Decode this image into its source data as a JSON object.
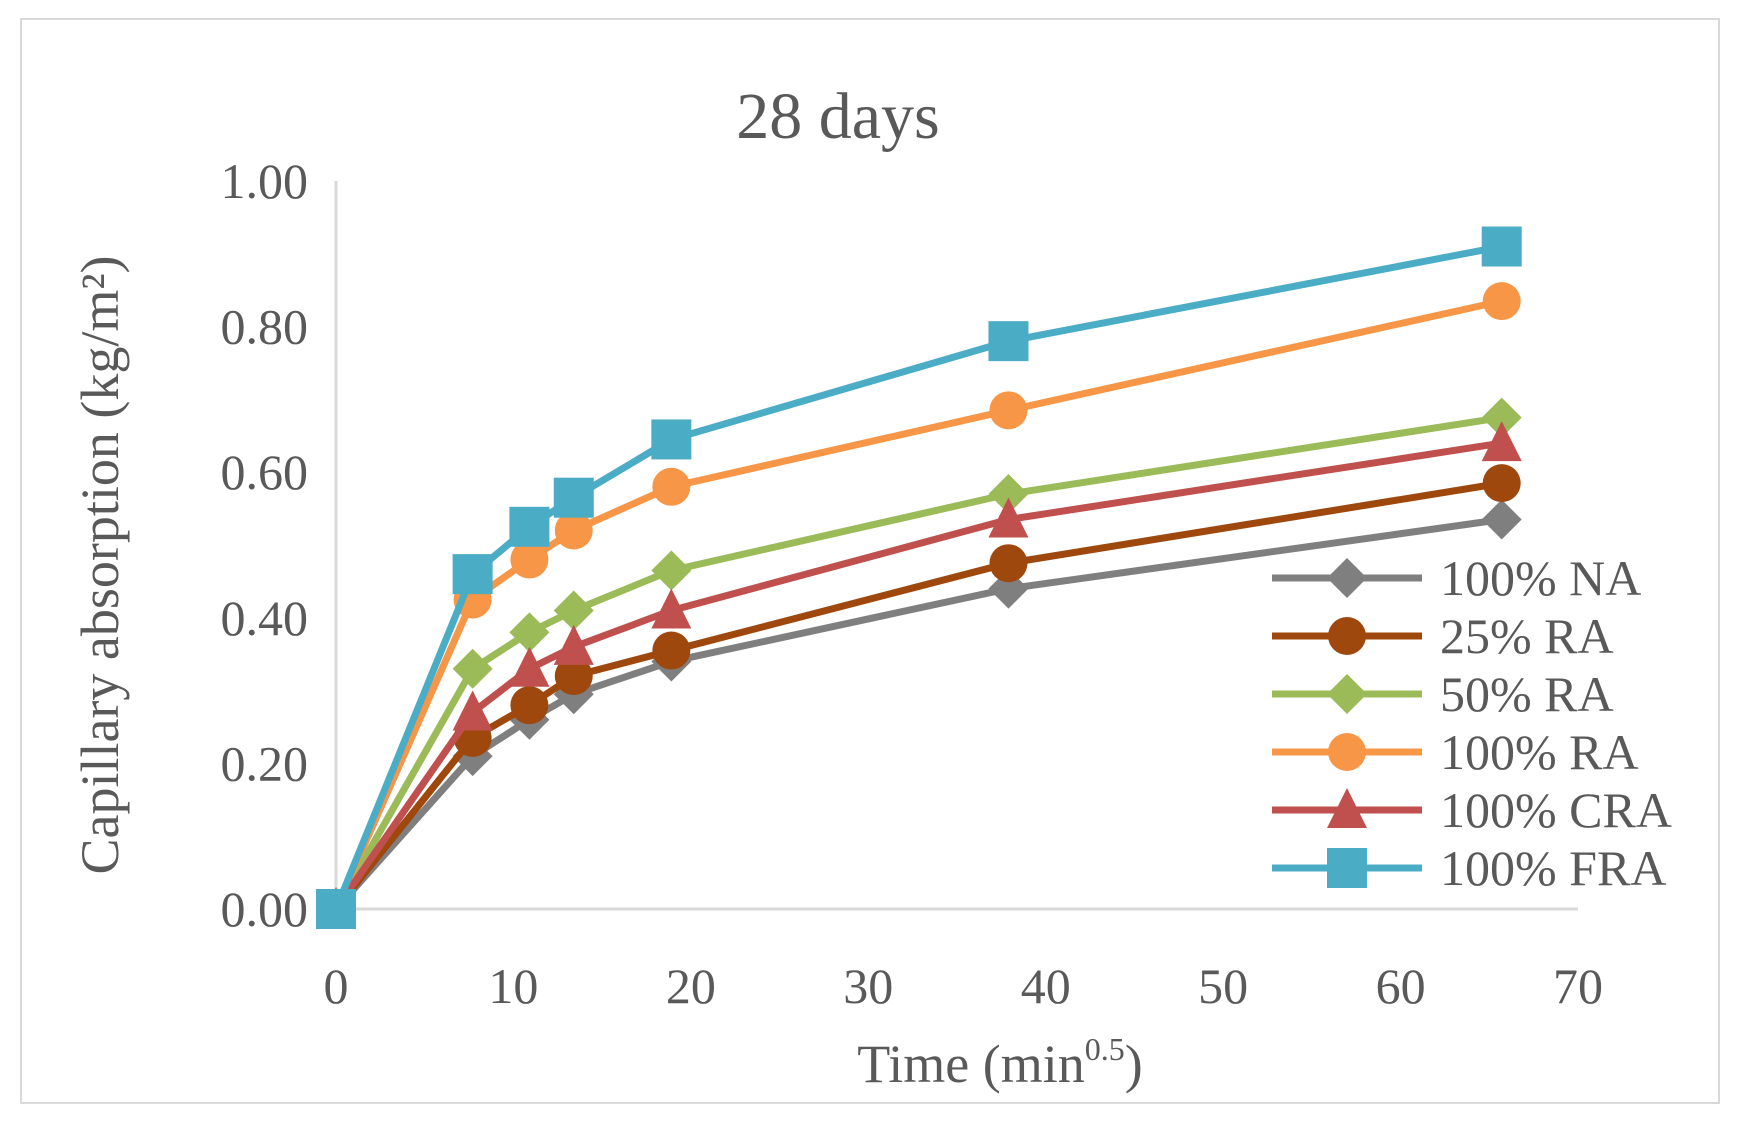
{
  "chart_data": {
    "type": "line",
    "title": "28 days",
    "xlabel": "Time (min",
    "xlabel_sup": "0.5",
    "xlabel_end": ")",
    "ylabel": "Capillary absorption (kg/m²)",
    "xlim": [
      0,
      70
    ],
    "ylim": [
      0,
      1.0
    ],
    "x_ticks": [
      "0",
      "10",
      "20",
      "30",
      "40",
      "50",
      "60",
      "70"
    ],
    "y_ticks": [
      "0.00",
      "0.20",
      "0.40",
      "0.60",
      "0.80",
      "1.00"
    ],
    "x": [
      0,
      7.7,
      10.9,
      13.4,
      18.9,
      37.9,
      65.7
    ],
    "series": [
      {
        "name": "100% NA",
        "color": "#7f7f7f",
        "marker": "diamond",
        "values": [
          0,
          0.21,
          0.26,
          0.295,
          0.34,
          0.44,
          0.535
        ]
      },
      {
        "name": "25% RA",
        "color": "#9e480e",
        "marker": "circle",
        "values": [
          0,
          0.235,
          0.28,
          0.32,
          0.355,
          0.475,
          0.585
        ]
      },
      {
        "name": "50% RA",
        "color": "#9bbb59",
        "marker": "diamond",
        "values": [
          0,
          0.33,
          0.38,
          0.41,
          0.465,
          0.57,
          0.675
        ]
      },
      {
        "name": "100% RA",
        "color": "#f79646",
        "marker": "circle",
        "values": [
          0,
          0.425,
          0.48,
          0.52,
          0.58,
          0.685,
          0.835
        ]
      },
      {
        "name": "100% CRA",
        "color": "#c0504d",
        "marker": "triangle",
        "values": [
          0,
          0.27,
          0.33,
          0.36,
          0.41,
          0.535,
          0.64
        ]
      },
      {
        "name": "100% FRA",
        "color": "#4bacc6",
        "marker": "square",
        "values": [
          0,
          0.46,
          0.525,
          0.565,
          0.645,
          0.78,
          0.91
        ]
      }
    ],
    "legend_position": "right",
    "grid": false
  }
}
